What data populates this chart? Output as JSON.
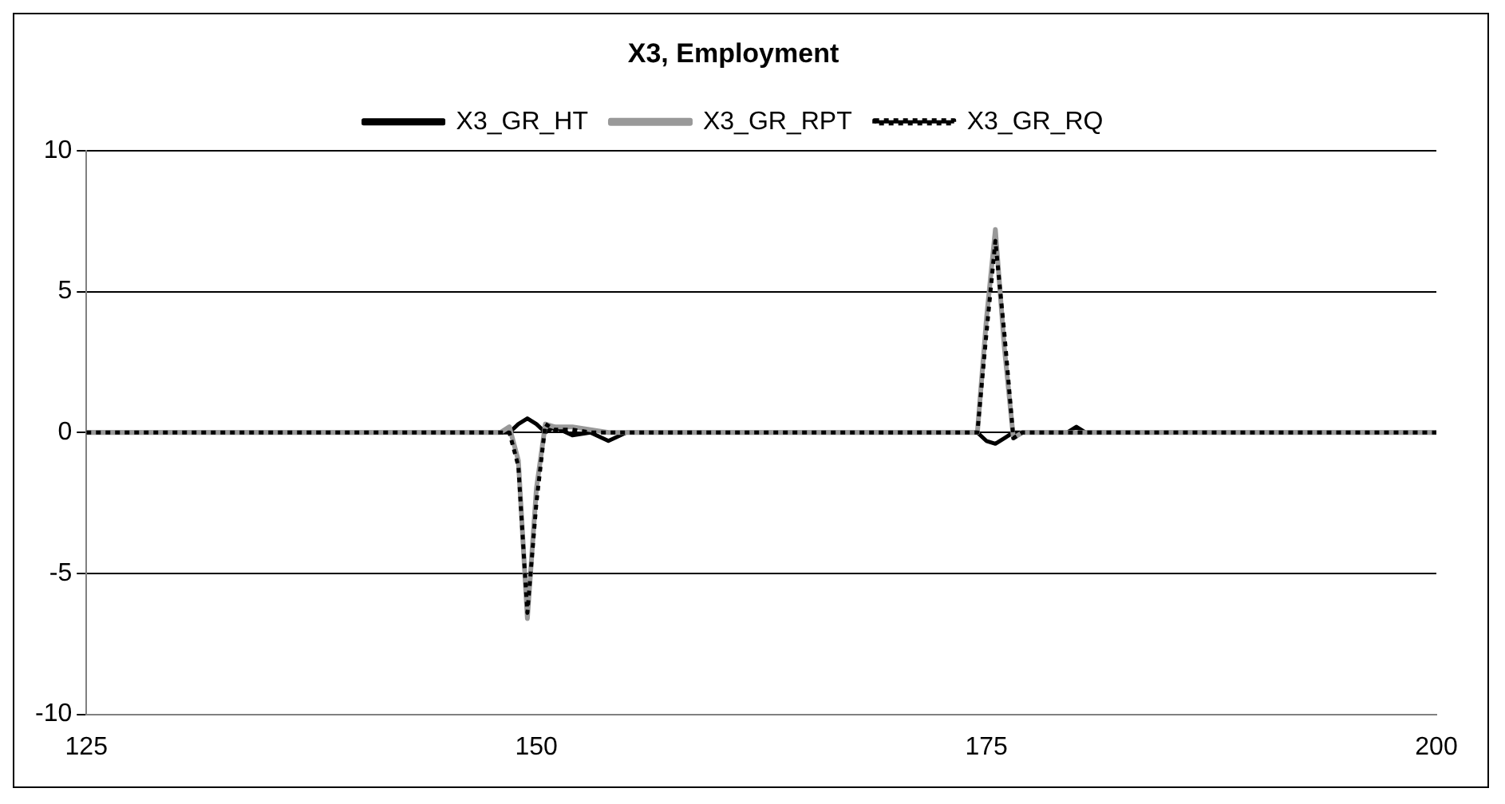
{
  "chart_data": {
    "type": "line",
    "title": "X3, Employment",
    "xlim": [
      125,
      200
    ],
    "xticks": [
      125,
      150,
      175,
      200
    ],
    "ylim": [
      -10,
      10
    ],
    "yticks": [
      -10,
      -5,
      0,
      5,
      10
    ],
    "grid": "y",
    "legend": "top",
    "marker": "none",
    "series": [
      {
        "name": "X3_GR_HT",
        "color": "#000000",
        "line_style": "solid",
        "x": [
          125,
          148.5,
          149,
          149.5,
          150,
          150.5,
          151,
          152,
          153,
          154,
          155,
          174.5,
          175,
          175.5,
          176,
          176.5,
          179.5,
          180,
          180.5,
          200
        ],
        "values": [
          0,
          0,
          0.3,
          0.5,
          0.3,
          0,
          0.2,
          -0.1,
          0,
          -0.3,
          0,
          0,
          -0.3,
          -0.4,
          -0.2,
          0,
          0,
          0.2,
          0,
          0
        ]
      },
      {
        "name": "X3_GR_RPT",
        "color": "#999999",
        "line_style": "solid",
        "x": [
          125,
          148,
          148.5,
          149,
          149.5,
          150,
          150.5,
          151,
          152,
          153,
          154,
          174.5,
          175,
          175.5,
          176,
          176.5,
          177,
          200
        ],
        "values": [
          0,
          0,
          0.2,
          -1,
          -6.6,
          -2,
          0.3,
          0.2,
          0.2,
          0.1,
          0,
          0,
          4,
          7.2,
          3,
          -0.2,
          0,
          0
        ]
      },
      {
        "name": "X3_GR_RQ",
        "color": "#000000",
        "line_style": "dotted",
        "x": [
          125,
          148.5,
          149,
          149.5,
          150,
          150.5,
          151,
          152,
          153,
          174.5,
          175,
          175.5,
          176,
          176.5,
          177,
          200
        ],
        "values": [
          0,
          0,
          -1.2,
          -6.4,
          -2.5,
          0.3,
          0.1,
          0.1,
          0,
          0,
          3.5,
          6.8,
          3.5,
          -0.2,
          0,
          0
        ]
      }
    ]
  }
}
